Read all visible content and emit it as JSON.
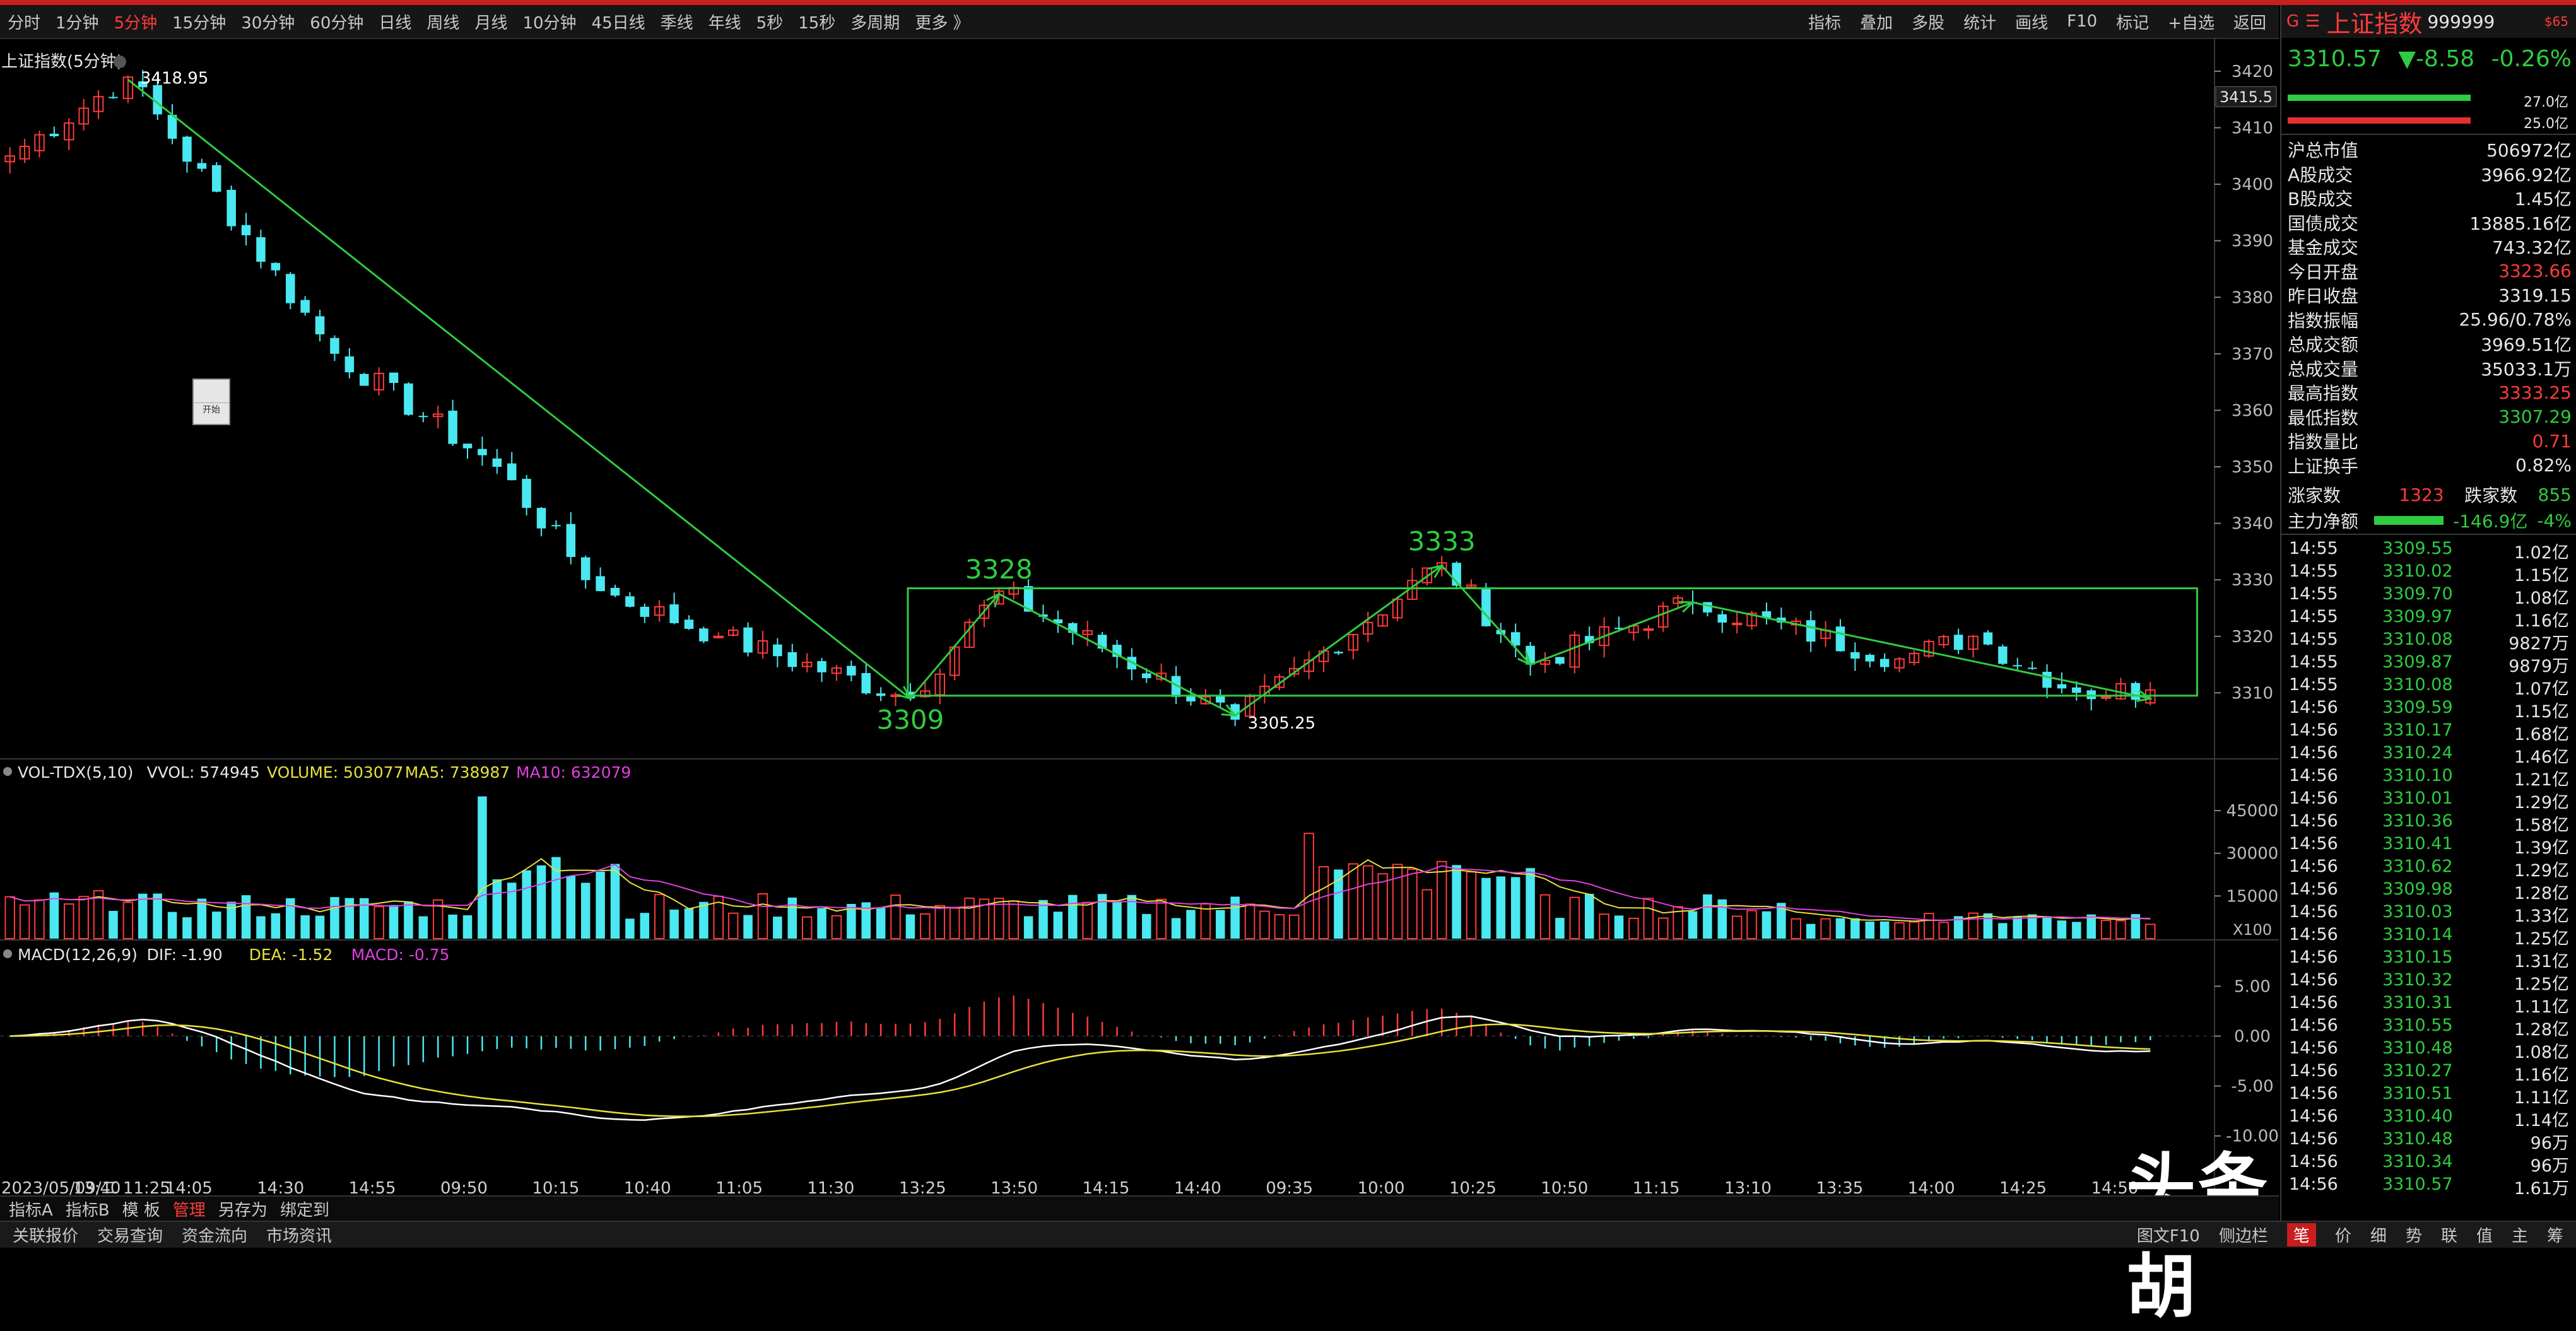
{
  "toolbar": {
    "periods": [
      "分时",
      "1分钟",
      "5分钟",
      "15分钟",
      "30分钟",
      "60分钟",
      "日线",
      "周线",
      "月线",
      "10分钟",
      "45日线",
      "季线",
      "年线",
      "5秒",
      "15秒",
      "多周期",
      "更多 》"
    ],
    "active_index": 2,
    "right_items": [
      "指标",
      "叠加",
      "多股",
      "统计",
      "画线",
      "F10",
      "标记",
      "+自选",
      "返回"
    ]
  },
  "quote_header": {
    "mark": "G",
    "menu_icon": "menu-lines-icon",
    "name": "上证指数",
    "code": "999999",
    "badge": "$65",
    "price": "3310.57",
    "change": "▼-8.58",
    "pct": "-0.26%",
    "inflow_label": "27.0亿",
    "outflow_label": "25.0亿"
  },
  "stats": [
    {
      "label": "沪总市值",
      "value": "506972亿",
      "color": "white"
    },
    {
      "label": "A股成交",
      "value": "3966.92亿",
      "color": "white"
    },
    {
      "label": "B股成交",
      "value": "1.45亿",
      "color": "white"
    },
    {
      "label": "国债成交",
      "value": "13885.16亿",
      "color": "white"
    },
    {
      "label": "基金成交",
      "value": "743.32亿",
      "color": "white"
    },
    {
      "label": "今日开盘",
      "value": "3323.66",
      "color": "red"
    },
    {
      "label": "昨日收盘",
      "value": "3319.15",
      "color": "white"
    },
    {
      "label": "指数振幅",
      "value": "25.96/0.78%",
      "color": "white"
    },
    {
      "label": "总成交额",
      "value": "3969.51亿",
      "color": "white"
    },
    {
      "label": "总成交量",
      "value": "35033.1万",
      "color": "white"
    },
    {
      "label": "最高指数",
      "value": "3333.25",
      "color": "red"
    },
    {
      "label": "最低指数",
      "value": "3307.29",
      "color": "green"
    },
    {
      "label": "指数量比",
      "value": "0.71",
      "color": "red"
    },
    {
      "label": "上证换手",
      "value": "0.82%",
      "color": "white"
    }
  ],
  "breadth": {
    "up_label": "涨家数",
    "up": "1323",
    "down_label": "跌家数",
    "down": "855"
  },
  "main_flow": {
    "label": "主力净额",
    "value": "-146.9亿",
    "pct": "-4%"
  },
  "ticks": [
    [
      "14:55",
      "3309.55",
      "1.02亿"
    ],
    [
      "14:55",
      "3310.02",
      "1.15亿"
    ],
    [
      "14:55",
      "3309.70",
      "1.08亿"
    ],
    [
      "14:55",
      "3309.97",
      "1.16亿"
    ],
    [
      "14:55",
      "3310.08",
      "9827万"
    ],
    [
      "14:55",
      "3309.87",
      "9879万"
    ],
    [
      "14:55",
      "3310.08",
      "1.07亿"
    ],
    [
      "14:56",
      "3309.59",
      "1.15亿"
    ],
    [
      "14:56",
      "3310.17",
      "1.68亿"
    ],
    [
      "14:56",
      "3310.24",
      "1.46亿"
    ],
    [
      "14:56",
      "3310.10",
      "1.21亿"
    ],
    [
      "14:56",
      "3310.01",
      "1.29亿"
    ],
    [
      "14:56",
      "3310.36",
      "1.58亿"
    ],
    [
      "14:56",
      "3310.41",
      "1.39亿"
    ],
    [
      "14:56",
      "3310.62",
      "1.29亿"
    ],
    [
      "14:56",
      "3309.98",
      "1.28亿"
    ],
    [
      "14:56",
      "3310.03",
      "1.33亿"
    ],
    [
      "14:56",
      "3310.14",
      "1.25亿"
    ],
    [
      "14:56",
      "3310.15",
      "1.31亿"
    ],
    [
      "14:56",
      "3310.32",
      "1.25亿"
    ],
    [
      "14:56",
      "3310.31",
      "1.11亿"
    ],
    [
      "14:56",
      "3310.55",
      "1.28亿"
    ],
    [
      "14:56",
      "3310.48",
      "1.08亿"
    ],
    [
      "14:56",
      "3310.27",
      "1.16亿"
    ],
    [
      "14:56",
      "3310.51",
      "1.11亿"
    ],
    [
      "14:56",
      "3310.40",
      "1.14亿"
    ],
    [
      "14:56",
      "3310.48",
      "96万"
    ],
    [
      "14:56",
      "3310.34",
      "96万"
    ],
    [
      "14:56",
      "3310.57",
      "1.61万"
    ]
  ],
  "bottom_tabs": [
    "指标A",
    "指标B",
    "模 板",
    "管理",
    "另存为",
    "绑定到"
  ],
  "bottom_tab_active": 3,
  "status_bar": [
    "关联报价",
    "交易查询",
    "资金流向",
    "市场资讯"
  ],
  "status_right": [
    "图文F10",
    "侧边栏"
  ],
  "status_right_tabs": [
    "笔",
    "价",
    "细",
    "势",
    "联",
    "值",
    "主",
    "筹"
  ],
  "watermark": "头条 @结构胡",
  "start_box_label": "开始",
  "chart_data": {
    "type": "candlestick",
    "title": "上证指数(5分钟)",
    "ylim": [
      3302,
      3422
    ],
    "yticks": [
      3420,
      3410,
      3400,
      3390,
      3380,
      3370,
      3360,
      3350,
      3340,
      3330,
      3320,
      3310
    ],
    "last_price_label": "3415.5",
    "time_labels": [
      "2023/05/09/二 11:25",
      "13:40",
      "14:05",
      "14:30",
      "14:55",
      "09:50",
      "10:15",
      "10:40",
      "11:05",
      "11:30",
      "13:25",
      "13:50",
      "14:15",
      "14:40",
      "09:35",
      "10:00",
      "10:25",
      "10:50",
      "11:15",
      "13:10",
      "13:35",
      "14:00",
      "14:25",
      "14:50"
    ],
    "n_bars": 146,
    "key_points": [
      {
        "i": 0,
        "v": 3405
      },
      {
        "i": 8,
        "v": 3418.95
      },
      {
        "i": 22,
        "v": 3370
      },
      {
        "i": 33,
        "v": 3350
      },
      {
        "i": 40,
        "v": 3328
      },
      {
        "i": 48,
        "v": 3320
      },
      {
        "i": 61,
        "v": 3309
      },
      {
        "i": 67,
        "v": 3328
      },
      {
        "i": 83,
        "v": 3305.25
      },
      {
        "i": 97,
        "v": 3333
      },
      {
        "i": 103,
        "v": 3315
      },
      {
        "i": 114,
        "v": 3326
      },
      {
        "i": 128,
        "v": 3316
      },
      {
        "i": 133,
        "v": 3320
      },
      {
        "i": 140,
        "v": 3310
      },
      {
        "i": 145,
        "v": 3310.5
      }
    ],
    "annotations": [
      {
        "text": "3418.95",
        "i": 8,
        "v": 3418.95,
        "color": "#ffffff"
      },
      {
        "text": "3328",
        "i": 67,
        "v": 3328,
        "color": "#2ecc40"
      },
      {
        "text": "3309",
        "i": 61,
        "v": 3309,
        "color": "#2ecc40"
      },
      {
        "text": "3333",
        "i": 97,
        "v": 3333,
        "color": "#2ecc40"
      },
      {
        "text": "3305.25",
        "i": 83,
        "v": 3305.25,
        "color": "#ffffff"
      }
    ],
    "trend_lines": [
      [
        {
          "i": 8,
          "v": 3418.5
        },
        {
          "i": 61,
          "v": 3309
        }
      ],
      [
        {
          "i": 61,
          "v": 3309
        },
        {
          "i": 67,
          "v": 3327.5
        },
        {
          "i": 83,
          "v": 3306
        },
        {
          "i": 97,
          "v": 3332.5
        },
        {
          "i": 103,
          "v": 3315
        },
        {
          "i": 114,
          "v": 3326
        },
        {
          "i": 145,
          "v": 3309
        }
      ]
    ],
    "range_box": {
      "i0": 61,
      "i1": 148,
      "top": 3328.5,
      "bottom": 3309.5
    },
    "volume": {
      "title": "VOL-TDX(5,10)",
      "vvol": "VVOL: 574945",
      "volume": "VOLUME: 503077",
      "ma5": "MA5: 738987",
      "ma10": "MA10: 632079",
      "yticks": [
        45000,
        30000,
        15000
      ],
      "unit": "X100",
      "ylim": [
        0,
        55000
      ]
    },
    "macd": {
      "title": "MACD(12,26,9)",
      "dif": "DIF: -1.90",
      "dea": "DEA: -1.52",
      "macd": "MACD: -0.75",
      "yticks": [
        "5.00",
        "0.00",
        "-5.00",
        "-10.00"
      ],
      "ylim": [
        -14,
        8
      ]
    }
  }
}
